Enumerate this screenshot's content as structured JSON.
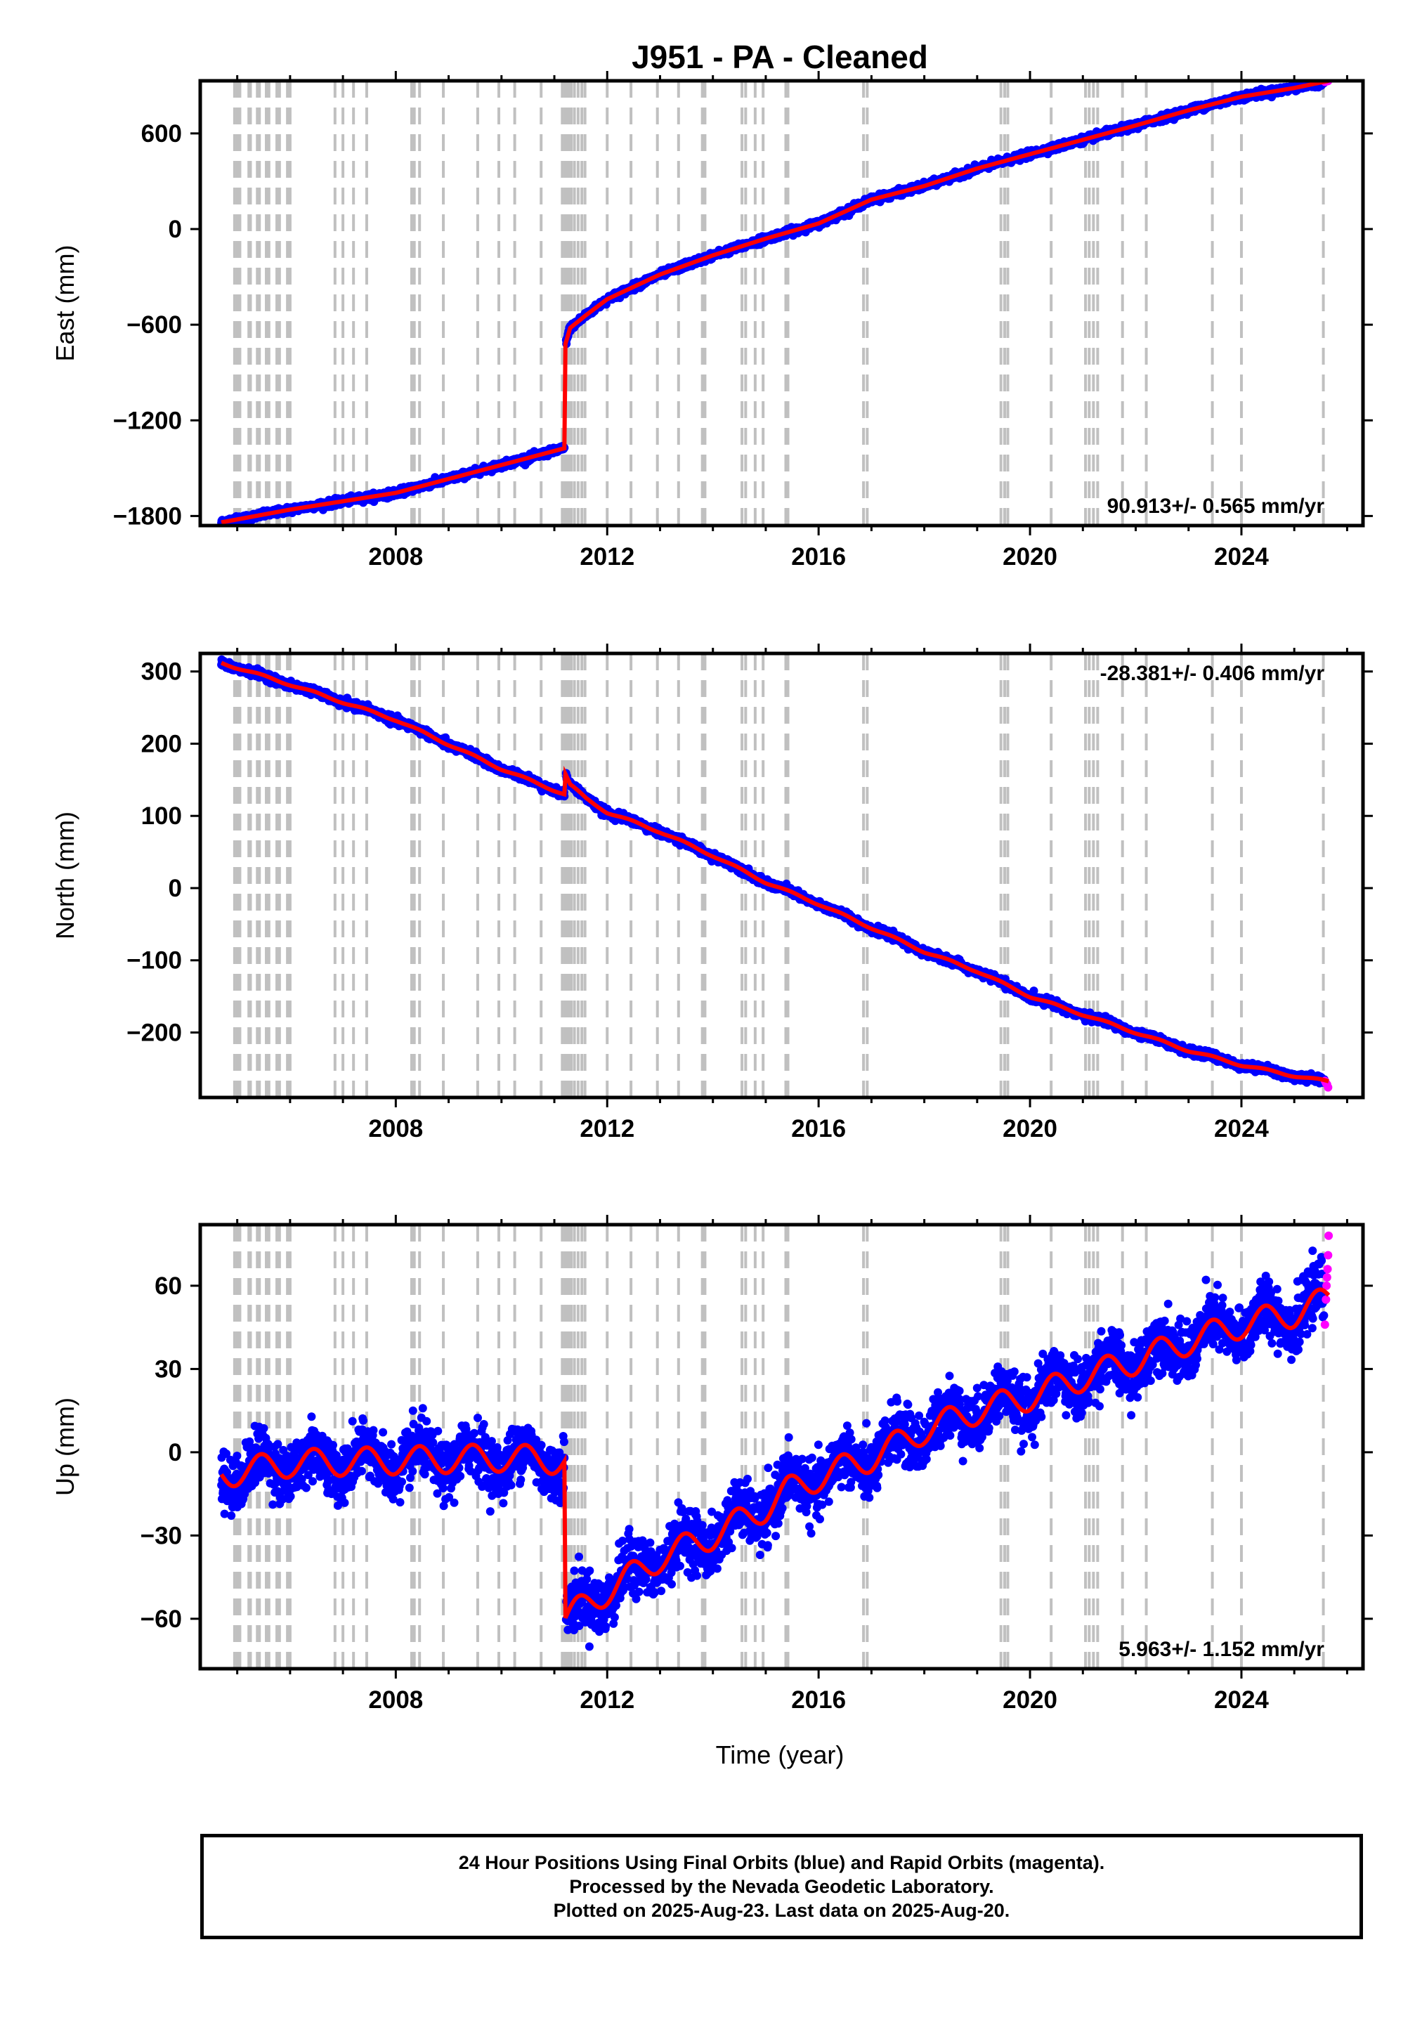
{
  "figure": {
    "title": "J951  - PA - Cleaned",
    "xlabel": "Time (year)",
    "footer": [
      "24 Hour Positions Using Final Orbits (blue) and Rapid Orbits (magenta).",
      "Processed by the Nevada Geodetic Laboratory.",
      "Plotted on 2025-Aug-23. Last data on 2025-Aug-20."
    ]
  },
  "colors": {
    "final_orbits": "#0000ff",
    "rapid_orbits": "#ff00ff",
    "model": "#ff0000",
    "event_lines": "#c0c0c0",
    "axes": "#000000"
  },
  "chart_data": [
    {
      "type": "scatter",
      "name": "east",
      "ylabel": "East (mm)",
      "rate_label": "90.913+/- 0.565 mm/yr",
      "rate_position": "bottom-right",
      "xlim": [
        2004.3,
        2026.3
      ],
      "ylim": [
        -1860,
        930
      ],
      "xticks": [
        2008,
        2012,
        2016,
        2020,
        2024
      ],
      "yticks": [
        -1800,
        -1200,
        -600,
        0,
        600
      ],
      "grid": false,
      "noise": 10,
      "seasonal_amp": 0,
      "model_knots": [
        [
          2004.7,
          -1840
        ],
        [
          2006.0,
          -1760
        ],
        [
          2008.0,
          -1655
        ],
        [
          2010.0,
          -1480
        ],
        [
          2011.19,
          -1375
        ],
        [
          2011.21,
          -720
        ],
        [
          2011.3,
          -620
        ],
        [
          2011.6,
          -540
        ],
        [
          2012.0,
          -440
        ],
        [
          2013.0,
          -285
        ],
        [
          2014.0,
          -165
        ],
        [
          2015.0,
          -60
        ],
        [
          2016.0,
          35
        ],
        [
          2017.0,
          185
        ],
        [
          2018.0,
          270
        ],
        [
          2019.0,
          380
        ],
        [
          2020.0,
          470
        ],
        [
          2021.0,
          560
        ],
        [
          2022.0,
          650
        ],
        [
          2023.0,
          745
        ],
        [
          2024.0,
          830
        ],
        [
          2025.0,
          885
        ],
        [
          2025.65,
          930
        ]
      ],
      "rapid_points": [
        [
          2025.58,
          924
        ],
        [
          2025.6,
          926
        ],
        [
          2025.62,
          927
        ],
        [
          2025.64,
          929
        ]
      ]
    },
    {
      "type": "scatter",
      "name": "north",
      "ylabel": "North (mm)",
      "rate_label": "-28.381+/- 0.406 mm/yr",
      "rate_position": "top-right",
      "xlim": [
        2004.3,
        2026.3
      ],
      "ylim": [
        -290,
        325
      ],
      "xticks": [
        2008,
        2012,
        2016,
        2020,
        2024
      ],
      "yticks": [
        -200,
        -100,
        0,
        100,
        200,
        300
      ],
      "grid": false,
      "noise": 2.5,
      "seasonal_amp": 1.5,
      "model_knots": [
        [
          2004.7,
          312
        ],
        [
          2006.0,
          282
        ],
        [
          2008.0,
          233
        ],
        [
          2010.0,
          165
        ],
        [
          2011.19,
          130
        ],
        [
          2011.21,
          158
        ],
        [
          2011.3,
          143
        ],
        [
          2011.6,
          124
        ],
        [
          2012.0,
          105
        ],
        [
          2013.0,
          78
        ],
        [
          2014.0,
          45
        ],
        [
          2015.0,
          8
        ],
        [
          2016.0,
          -22
        ],
        [
          2017.0,
          -55
        ],
        [
          2018.0,
          -88
        ],
        [
          2019.0,
          -115
        ],
        [
          2020.0,
          -150
        ],
        [
          2021.0,
          -175
        ],
        [
          2022.0,
          -200
        ],
        [
          2023.0,
          -225
        ],
        [
          2024.0,
          -245
        ],
        [
          2025.0,
          -260
        ],
        [
          2025.65,
          -268
        ]
      ],
      "rapid_points": [
        [
          2025.58,
          -267
        ],
        [
          2025.6,
          -270
        ],
        [
          2025.62,
          -272
        ],
        [
          2025.64,
          -276
        ]
      ]
    },
    {
      "type": "scatter",
      "name": "up",
      "ylabel": "Up (mm)",
      "rate_label": "5.963+/- 1.152 mm/yr",
      "rate_position": "bottom-right",
      "xlim": [
        2004.3,
        2026.3
      ],
      "ylim": [
        -78,
        82
      ],
      "xticks": [
        2008,
        2012,
        2016,
        2020,
        2024
      ],
      "yticks": [
        -60,
        -30,
        0,
        30,
        60
      ],
      "grid": false,
      "noise": 5,
      "seasonal_amp": 5,
      "model_knots": [
        [
          2004.7,
          -8
        ],
        [
          2006.0,
          -4
        ],
        [
          2008.0,
          -3
        ],
        [
          2010.0,
          -2
        ],
        [
          2011.19,
          -3
        ],
        [
          2011.21,
          -60
        ],
        [
          2012.0,
          -50
        ],
        [
          2013.0,
          -38
        ],
        [
          2014.0,
          -30
        ],
        [
          2015.0,
          -20
        ],
        [
          2015.4,
          -14
        ],
        [
          2016.0,
          -9
        ],
        [
          2017.0,
          -2
        ],
        [
          2018.0,
          8
        ],
        [
          2019.0,
          15
        ],
        [
          2020.0,
          20
        ],
        [
          2021.0,
          27
        ],
        [
          2022.0,
          33
        ],
        [
          2023.0,
          40
        ],
        [
          2024.0,
          46
        ],
        [
          2025.0,
          50
        ],
        [
          2025.65,
          55
        ]
      ],
      "rapid_points": [
        [
          2025.58,
          46
        ],
        [
          2025.6,
          55
        ],
        [
          2025.61,
          60
        ],
        [
          2025.62,
          63
        ],
        [
          2025.63,
          66
        ],
        [
          2025.64,
          71
        ],
        [
          2025.65,
          78
        ]
      ]
    }
  ],
  "event_years": [
    2004.95,
    2005.0,
    2005.05,
    2005.22,
    2005.25,
    2005.38,
    2005.42,
    2005.55,
    2005.6,
    2005.75,
    2005.8,
    2005.95,
    2006.0,
    2006.85,
    2007.0,
    2007.2,
    2007.45,
    2008.3,
    2008.35,
    2008.45,
    2008.9,
    2009.55,
    2009.95,
    2010.25,
    2010.75,
    2011.15,
    2011.2,
    2011.24,
    2011.28,
    2011.32,
    2011.38,
    2011.45,
    2011.52,
    2011.58,
    2012.0,
    2012.45,
    2012.95,
    2013.35,
    2013.8,
    2013.85,
    2014.55,
    2014.62,
    2014.8,
    2014.95,
    2015.38,
    2015.42,
    2016.85,
    2016.92,
    2019.45,
    2019.52,
    2019.58,
    2020.4,
    2021.05,
    2021.12,
    2021.2,
    2021.28,
    2021.75,
    2022.2,
    2023.45,
    2024.0,
    2025.55
  ]
}
